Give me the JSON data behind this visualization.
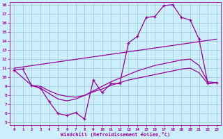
{
  "xlabel": "Windchill (Refroidissement éolien,°C)",
  "xlim": [
    -0.5,
    23.5
  ],
  "ylim": [
    4.7,
    18.3
  ],
  "xticks": [
    0,
    1,
    2,
    3,
    4,
    5,
    6,
    7,
    8,
    9,
    10,
    11,
    12,
    13,
    14,
    15,
    16,
    17,
    18,
    19,
    20,
    21,
    22,
    23
  ],
  "yticks": [
    5,
    6,
    7,
    8,
    9,
    10,
    11,
    12,
    13,
    14,
    15,
    16,
    17,
    18
  ],
  "background_color": "#cceeff",
  "line_color": "#990099",
  "grid_color": "#99cccc",
  "curve1_x": [
    0,
    1,
    2,
    3,
    4,
    5,
    6,
    7,
    8,
    9,
    10,
    11,
    12,
    13,
    14,
    15,
    16,
    17,
    18,
    19,
    20,
    21,
    22,
    23
  ],
  "curve1_y": [
    10.8,
    10.9,
    9.1,
    8.8,
    7.3,
    6.0,
    5.8,
    6.1,
    5.4,
    9.7,
    8.3,
    9.3,
    9.3,
    13.8,
    14.5,
    16.6,
    16.7,
    17.9,
    18.0,
    16.6,
    16.3,
    14.2,
    9.3,
    9.4
  ],
  "curve2_x": [
    0,
    23
  ],
  "curve2_y": [
    11.0,
    14.2
  ],
  "curve3_x": [
    0,
    2,
    3,
    4,
    5,
    6,
    7,
    8,
    9,
    10,
    11,
    12,
    13,
    14,
    15,
    16,
    17,
    18,
    19,
    20,
    21,
    22,
    23
  ],
  "curve3_y": [
    10.8,
    9.1,
    9.0,
    8.5,
    8.1,
    7.9,
    7.8,
    8.0,
    8.5,
    9.0,
    9.5,
    9.9,
    10.3,
    10.7,
    11.0,
    11.3,
    11.5,
    11.7,
    11.9,
    12.0,
    11.3,
    9.5,
    9.4
  ],
  "curve4_x": [
    2,
    3,
    4,
    5,
    6,
    7,
    8,
    9,
    10,
    11,
    12,
    13,
    14,
    15,
    16,
    17,
    18,
    19,
    20,
    21,
    22,
    23
  ],
  "curve4_y": [
    9.1,
    8.8,
    8.2,
    7.6,
    7.4,
    7.6,
    8.0,
    8.4,
    8.7,
    9.1,
    9.4,
    9.7,
    9.9,
    10.1,
    10.3,
    10.5,
    10.7,
    10.9,
    11.0,
    10.5,
    9.3,
    9.4
  ]
}
